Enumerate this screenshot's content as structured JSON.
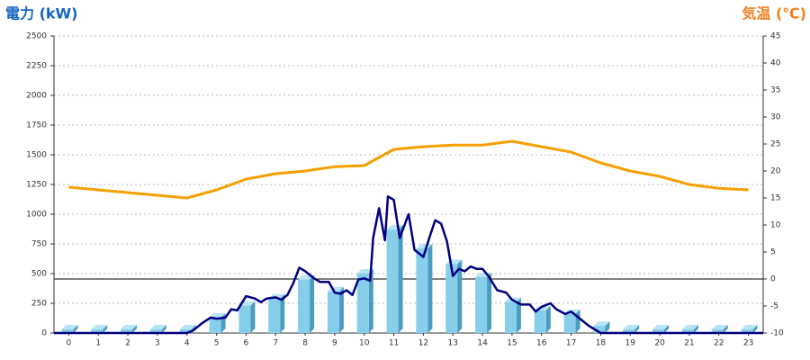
{
  "chart_data": {
    "type": "combo",
    "y_title": "電力 (kW)",
    "y2_title": "気温 (℃)",
    "categories": [
      "0",
      "1",
      "2",
      "3",
      "4",
      "5",
      "6",
      "7",
      "8",
      "9",
      "10",
      "11",
      "12",
      "13",
      "14",
      "15",
      "16",
      "17",
      "18",
      "19",
      "20",
      "21",
      "22",
      "23"
    ],
    "xlim": [
      -0.5,
      23.5
    ],
    "ylim": [
      0,
      2500
    ],
    "yticks": [
      0,
      250,
      500,
      750,
      1000,
      1250,
      1500,
      1750,
      2000,
      2250,
      2500
    ],
    "y2lim": [
      -10,
      45
    ],
    "y2ticks": [
      -10,
      -5,
      0,
      5,
      10,
      15,
      20,
      25,
      30,
      35,
      40,
      45
    ],
    "grid": true,
    "bars": {
      "color": "#87ceeb",
      "values": [
        30,
        30,
        30,
        30,
        30,
        130,
        230,
        290,
        450,
        350,
        500,
        870,
        710,
        580,
        470,
        260,
        190,
        160,
        60,
        30,
        30,
        30,
        30,
        30
      ]
    },
    "power_line": {
      "color": "#000080",
      "x": [
        -0.5,
        4,
        4.2,
        4.5,
        4.8,
        5,
        5.3,
        5.5,
        5.7,
        6,
        6.3,
        6.5,
        6.7,
        7,
        7.2,
        7.4,
        7.6,
        7.8,
        8,
        8.3,
        8.5,
        8.8,
        9,
        9.2,
        9.4,
        9.6,
        9.8,
        10,
        10.2,
        10.3,
        10.5,
        10.7,
        10.8,
        11,
        11.2,
        11.5,
        11.7,
        12,
        12.2,
        12.4,
        12.6,
        12.8,
        13,
        13.2,
        13.4,
        13.6,
        13.8,
        14,
        14.2,
        14.5,
        14.8,
        15,
        15.3,
        15.6,
        15.8,
        16,
        16.3,
        16.5,
        16.8,
        17,
        17.3,
        17.6,
        18,
        23.5
      ],
      "values": [
        0,
        0,
        20,
        80,
        130,
        120,
        130,
        200,
        190,
        310,
        290,
        260,
        290,
        300,
        280,
        320,
        420,
        550,
        520,
        460,
        430,
        430,
        340,
        330,
        360,
        320,
        450,
        460,
        440,
        800,
        1050,
        780,
        1150,
        1120,
        800,
        1000,
        700,
        640,
        800,
        950,
        920,
        770,
        480,
        540,
        520,
        560,
        540,
        540,
        480,
        360,
        340,
        280,
        240,
        240,
        180,
        220,
        250,
        200,
        160,
        180,
        120,
        60,
        0,
        0
      ]
    },
    "temperature": {
      "color": "#f5a000",
      "axis": "y2",
      "values": [
        17,
        16.5,
        16,
        15.5,
        15,
        16.5,
        18.5,
        19.5,
        20,
        20.8,
        21,
        24,
        24.5,
        24.8,
        24.8,
        25.5,
        24.5,
        23.5,
        21.5,
        20,
        19,
        17.5,
        16.8,
        16.5
      ]
    }
  }
}
